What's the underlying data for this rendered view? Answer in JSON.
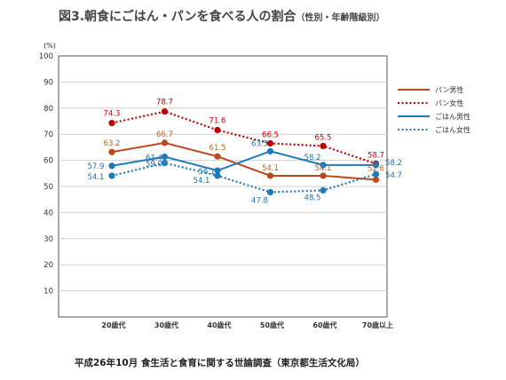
{
  "title": {
    "main": "図3.朝食にごはん・パンを食べる人の割合",
    "sub": "（性別・年齢階級別）"
  },
  "footer": "平成26年10月 食生活と食育に関する世論調査（東京都生活文化局）",
  "chart_data": {
    "type": "line",
    "title": "図3.朝食にごはん・パンを食べる人の割合（性別・年齢階級別）",
    "ylabel": "(%)",
    "xlabel": "",
    "categories": [
      "20歳代",
      "30歳代",
      "40歳代",
      "50歳代",
      "60歳代",
      "70歳以上"
    ],
    "ylim": [
      0,
      100
    ],
    "yticks": [
      10,
      20,
      30,
      40,
      50,
      60,
      70,
      80,
      90,
      100
    ],
    "grid": "horizontal",
    "legend_position": "right",
    "series": [
      {
        "name": "パン男性",
        "values": [
          63.2,
          66.7,
          61.5,
          54.1,
          54.1,
          52.6
        ],
        "color": "#c0461e",
        "style": "solid",
        "label_color": "#b5651d"
      },
      {
        "name": "パン女性",
        "values": [
          74.3,
          78.7,
          71.6,
          66.5,
          65.5,
          58.7
        ],
        "color": "#c00000",
        "style": "dotted",
        "label_color": "#c00000"
      },
      {
        "name": "ごはん男性",
        "values": [
          57.9,
          61.4,
          56.1,
          63.5,
          58.2,
          58.2
        ],
        "color": "#1f7ab8",
        "style": "solid",
        "label_color": "#1f6fa8"
      },
      {
        "name": "ごはん女性",
        "values": [
          54.1,
          59.0,
          54.1,
          47.8,
          48.5,
          54.7
        ],
        "color": "#1f7ab8",
        "style": "dotted",
        "label_color": "#1f6fa8"
      }
    ]
  }
}
